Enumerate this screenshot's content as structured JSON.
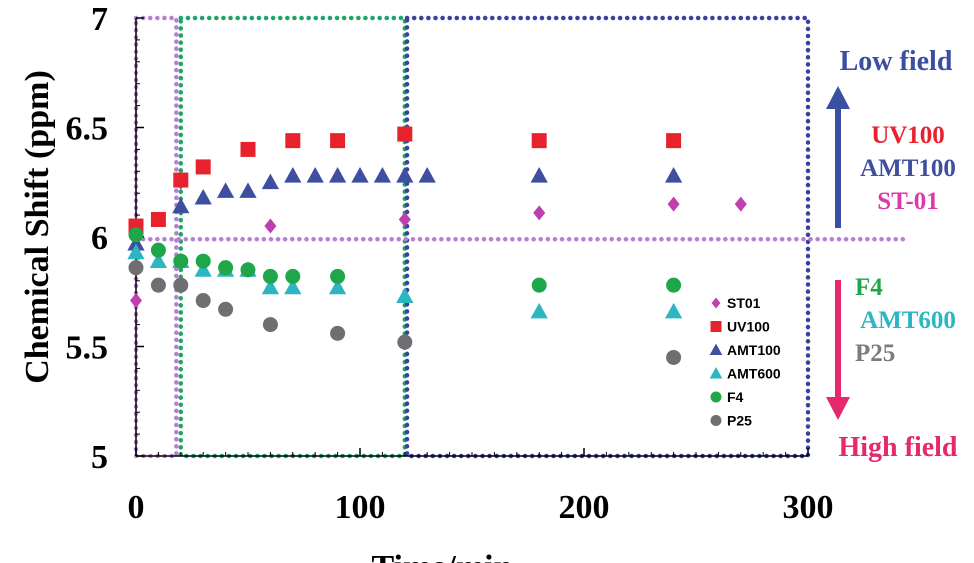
{
  "chart_data": {
    "type": "scatter",
    "title": "",
    "xlabel": "Time/min",
    "ylabel": "Chemical Shift (ppm)",
    "xlim": [
      0,
      300
    ],
    "ylim": [
      5,
      7
    ],
    "xticks": [
      0,
      100,
      200,
      300
    ],
    "xtick_labels": [
      "0",
      "100",
      "200",
      "300"
    ],
    "yticks": [
      5,
      5.5,
      6,
      6.5,
      7
    ],
    "ytick_labels": [
      "5",
      "5.5",
      "6",
      "6.5",
      "7"
    ],
    "grid": false,
    "legend_position": "bottom-right",
    "series": [
      {
        "name": "ST01",
        "marker": "diamond",
        "color": "#bf3fb0",
        "points": [
          [
            0,
            5.71
          ],
          [
            20,
            6.25
          ],
          [
            60,
            6.05
          ],
          [
            120,
            6.08
          ],
          [
            180,
            6.11
          ],
          [
            240,
            6.15
          ],
          [
            270,
            6.15
          ]
        ]
      },
      {
        "name": "UV100",
        "marker": "square",
        "color": "#e8222c",
        "points": [
          [
            0,
            6.05
          ],
          [
            10,
            6.08
          ],
          [
            20,
            6.26
          ],
          [
            30,
            6.32
          ],
          [
            50,
            6.4
          ],
          [
            70,
            6.44
          ],
          [
            90,
            6.44
          ],
          [
            120,
            6.47
          ],
          [
            180,
            6.44
          ],
          [
            240,
            6.44
          ]
        ]
      },
      {
        "name": "AMT100",
        "marker": "triangle",
        "color": "#3e4fa0",
        "points": [
          [
            0,
            5.97
          ],
          [
            20,
            6.14
          ],
          [
            30,
            6.18
          ],
          [
            40,
            6.21
          ],
          [
            50,
            6.21
          ],
          [
            60,
            6.25
          ],
          [
            70,
            6.28
          ],
          [
            80,
            6.28
          ],
          [
            90,
            6.28
          ],
          [
            100,
            6.28
          ],
          [
            110,
            6.28
          ],
          [
            120,
            6.28
          ],
          [
            130,
            6.28
          ],
          [
            180,
            6.28
          ],
          [
            240,
            6.28
          ]
        ]
      },
      {
        "name": "AMT600",
        "marker": "triangle",
        "color": "#2bb6c2",
        "points": [
          [
            0,
            5.93
          ],
          [
            10,
            5.89
          ],
          [
            20,
            5.89
          ],
          [
            30,
            5.85
          ],
          [
            40,
            5.85
          ],
          [
            50,
            5.85
          ],
          [
            60,
            5.77
          ],
          [
            70,
            5.77
          ],
          [
            90,
            5.77
          ],
          [
            120,
            5.73
          ],
          [
            180,
            5.66
          ],
          [
            240,
            5.66
          ]
        ]
      },
      {
        "name": "F4",
        "marker": "circle",
        "color": "#1fa64a",
        "points": [
          [
            0,
            6.01
          ],
          [
            10,
            5.94
          ],
          [
            20,
            5.89
          ],
          [
            30,
            5.89
          ],
          [
            40,
            5.86
          ],
          [
            50,
            5.85
          ],
          [
            60,
            5.82
          ],
          [
            70,
            5.82
          ],
          [
            90,
            5.82
          ],
          [
            180,
            5.78
          ],
          [
            240,
            5.78
          ]
        ]
      },
      {
        "name": "P25",
        "marker": "circle",
        "color": "#6e6e73",
        "points": [
          [
            0,
            5.86
          ],
          [
            10,
            5.78
          ],
          [
            20,
            5.78
          ],
          [
            30,
            5.71
          ],
          [
            40,
            5.67
          ],
          [
            60,
            5.6
          ],
          [
            90,
            5.56
          ],
          [
            120,
            5.52
          ],
          [
            240,
            5.45
          ]
        ]
      }
    ],
    "regions": [
      {
        "x": [
          0,
          18
        ],
        "y": [
          5,
          7
        ],
        "color": "#b57fd4",
        "style": "dotted"
      },
      {
        "x": [
          20,
          120
        ],
        "y": [
          5,
          7
        ],
        "color": "#1aa66a",
        "style": "dotted"
      },
      {
        "x": [
          121,
          300
        ],
        "y": [
          5,
          7
        ],
        "color": "#3b3f9e",
        "style": "dotted"
      }
    ],
    "reference_line": {
      "y": 5.99,
      "x": [
        0,
        345
      ],
      "color": "#b57fd4",
      "style": "dotted"
    },
    "annotations": {
      "low_field": {
        "label": "Low field",
        "color": "#3a4fa1"
      },
      "high_field": {
        "label": "High field",
        "color": "#e6286e"
      },
      "up_group": [
        {
          "label": "UV100",
          "color": "#e8222c"
        },
        {
          "label": "AMT100",
          "color": "#3e4fa0"
        },
        {
          "label": "ST-01",
          "color": "#d93aa8"
        }
      ],
      "down_group": [
        {
          "label": "F4",
          "color": "#1fa64a"
        },
        {
          "label": "AMT600",
          "color": "#2bb6c2"
        },
        {
          "label": "P25",
          "color": "#7a7a80"
        }
      ]
    }
  }
}
